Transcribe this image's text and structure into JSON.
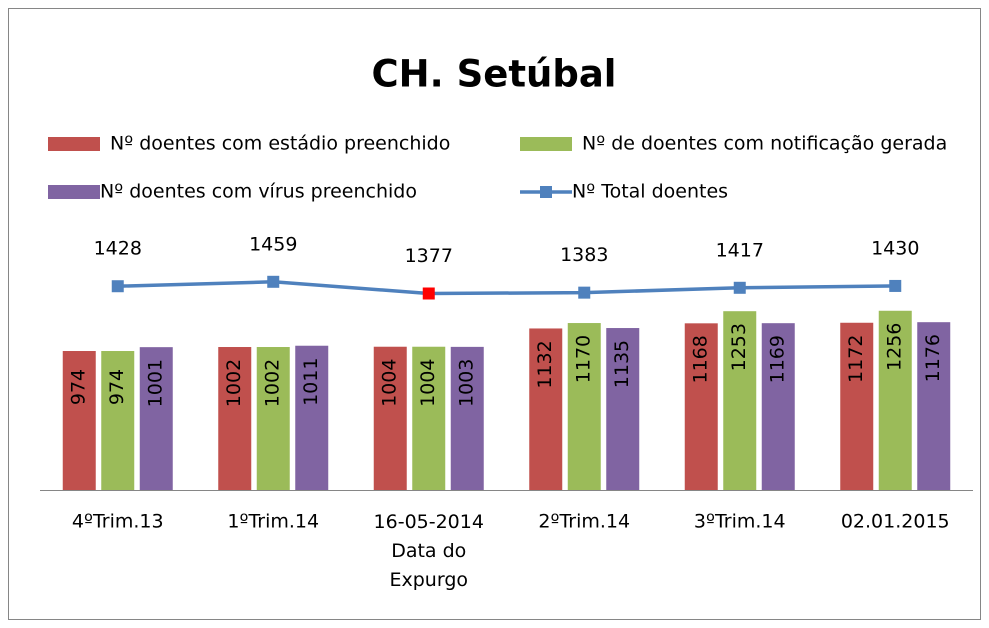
{
  "chart_data": {
    "type": "bar",
    "title": "CH. Setúbal",
    "categories": [
      "4ºTrim.13",
      "1ºTrim.14",
      "16-05-2014\nData do\nExpurgo",
      "2ºTrim.14",
      "3ºTrim.14",
      "02.01.2015"
    ],
    "series": [
      {
        "name": "Nº  doentes com estádio preenchido",
        "color": "#c0504d",
        "type": "bar",
        "values": [
          974,
          1002,
          1004,
          1132,
          1168,
          1172
        ]
      },
      {
        "name": "Nº de doentes com notificação gerada",
        "color": "#9bbb59",
        "type": "bar",
        "values": [
          974,
          1002,
          1004,
          1170,
          1253,
          1256
        ]
      },
      {
        "name": "Nº  doentes com vírus preenchido",
        "color": "#8064a2",
        "type": "bar",
        "values": [
          1001,
          1011,
          1003,
          1135,
          1169,
          1176
        ]
      },
      {
        "name": "Nº  Total doentes",
        "color": "#4f81bd",
        "type": "line",
        "values": [
          1428,
          1459,
          1377,
          1383,
          1417,
          1430
        ],
        "marker_colors": [
          "#4f81bd",
          "#4f81bd",
          "#ff0000",
          "#4f81bd",
          "#4f81bd",
          "#4f81bd"
        ]
      }
    ],
    "ylim": [
      0,
      1600
    ]
  }
}
